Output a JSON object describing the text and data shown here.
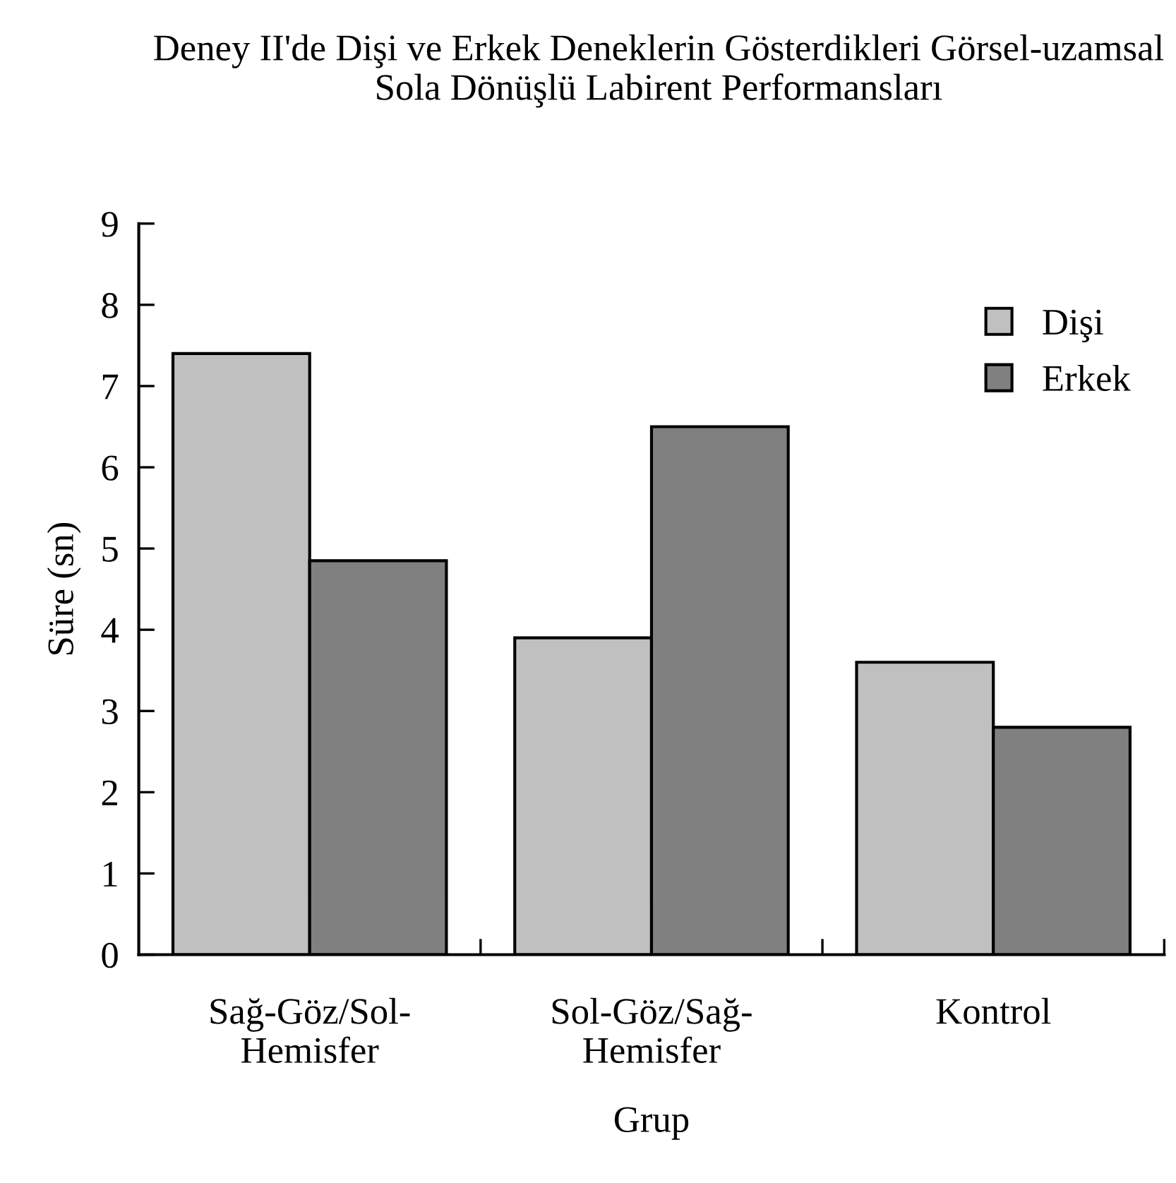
{
  "chart_data": {
    "type": "bar",
    "title": "Deney II'de Dişi ve Erkek Deneklerin Gösterdikleri Görsel-uzamsal Sola Dönüşlü Labirent Performansları",
    "xlabel": "Grup",
    "ylabel": "Süre (sn)",
    "categories": [
      "Sağ-Göz/Sol-\nHemisfer",
      "Sol-Göz/Sağ-\nHemisfer",
      "Kontrol"
    ],
    "series": [
      {
        "name": "Dişi",
        "color": "#c0c0c0",
        "values": [
          7.4,
          3.9,
          3.6
        ]
      },
      {
        "name": "Erkek",
        "color": "#808080",
        "values": [
          4.85,
          6.5,
          2.8
        ]
      }
    ],
    "ylim": [
      0,
      9
    ],
    "yticks": [
      0,
      1,
      2,
      3,
      4,
      5,
      6,
      7,
      8,
      9
    ],
    "grid": false,
    "legend": "top right"
  }
}
